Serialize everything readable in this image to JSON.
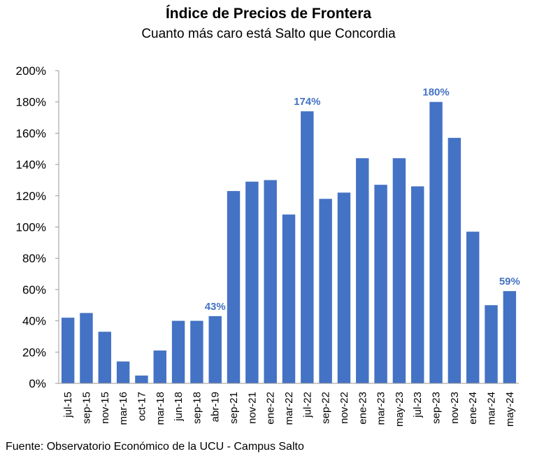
{
  "chart_data": {
    "type": "bar",
    "title": "Índice de Precios de Frontera",
    "subtitle": "Cuanto más caro está Salto que Concordia",
    "source": "Fuente: Observatorio Económico de la UCU - Campus Salto",
    "categories": [
      "jul-15",
      "sep-15",
      "nov-15",
      "mar-16",
      "oct-17",
      "mar-18",
      "jun-18",
      "sep-18",
      "abr-19",
      "sep-21",
      "nov-21",
      "ene-22",
      "mar-22",
      "jul-22",
      "sep-22",
      "nov-22",
      "ene-23",
      "mar-23",
      "may-23",
      "jul-23",
      "sep-23",
      "nov-23",
      "ene-24",
      "mar-24",
      "may-24"
    ],
    "values": [
      42,
      45,
      33,
      14,
      5,
      21,
      40,
      40,
      43,
      123,
      129,
      130,
      108,
      174,
      118,
      122,
      144,
      127,
      144,
      126,
      180,
      157,
      97,
      50,
      59
    ],
    "data_labels": [
      {
        "category": "abr-19",
        "text": "43%"
      },
      {
        "category": "jul-22",
        "text": "174%"
      },
      {
        "category": "sep-23",
        "text": "180%"
      },
      {
        "category": "may-24",
        "text": "59%"
      }
    ],
    "ylim": [
      0,
      200
    ],
    "yticks": [
      "0%",
      "20%",
      "40%",
      "60%",
      "80%",
      "100%",
      "120%",
      "140%",
      "160%",
      "180%",
      "200%"
    ],
    "bar_color": "#4472C4",
    "grid": false,
    "legend": "none"
  }
}
